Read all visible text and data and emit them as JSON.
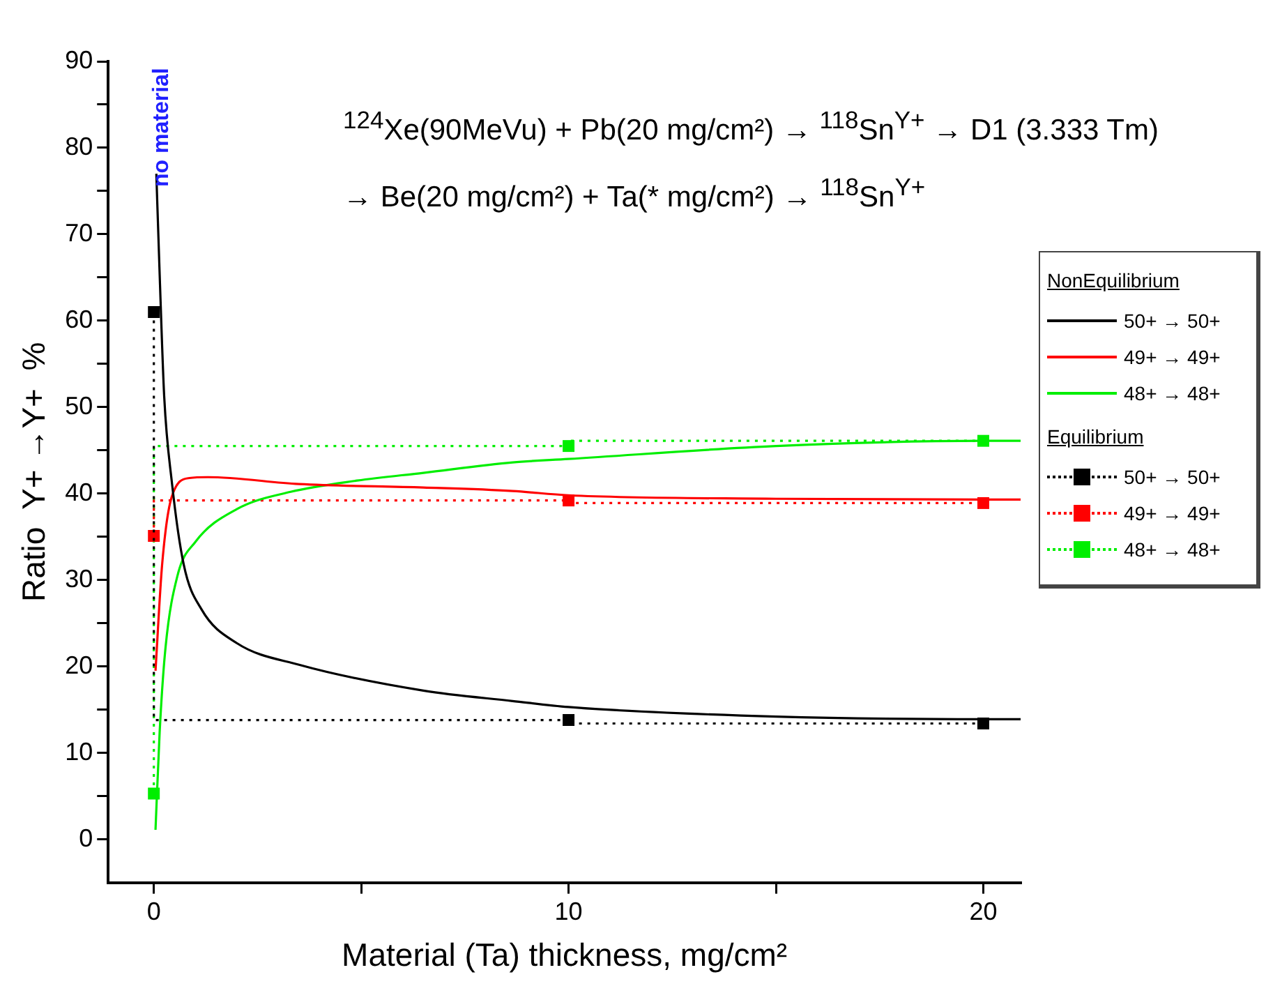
{
  "chart_data": {
    "type": "line",
    "title": "$^{124}$Xe(90MeVu) + Pb(20 mg/cm²)  → $^{118}$Sn$^{Y+}$ → D1 (3.333 Tm)\n→ Be(20 mg/cm²)  + Ta(* mg/cm²) → $^{118}$Sn$^{Y+}$",
    "xlabel": "Material (Ta) thickness, mg/cm²",
    "ylabel": "Ratio  Y+ →Y+  %",
    "annotations": [
      "no material",
      "NonEquilibrium",
      "Equilibrium"
    ],
    "xlim": [
      -1.1,
      20.9
    ],
    "xticks": [
      0,
      {
        "value": 5,
        "label": null
      },
      10,
      {
        "value": 15,
        "label": null
      },
      20
    ],
    "ylim": [
      -5,
      90
    ],
    "yticks": [
      0,
      {
        "value": 5,
        "label": null
      },
      10,
      {
        "value": 15,
        "label": null
      },
      20,
      {
        "value": 25,
        "label": null
      },
      30,
      {
        "value": 35,
        "label": null
      },
      40,
      {
        "value": 45,
        "label": null
      },
      50,
      {
        "value": 55,
        "label": null
      },
      60,
      {
        "value": 65,
        "label": null
      },
      70,
      {
        "value": 75,
        "label": null
      },
      80,
      {
        "value": 85,
        "label": null
      },
      90
    ],
    "legend": "right",
    "series": [
      {
        "name": "50+ → 50+",
        "color": "#000000",
        "marker": "none",
        "line_style": "solid",
        "x": [
          0.06,
          0.14,
          0.25,
          0.43,
          0.72,
          1.15,
          2.0,
          3.5,
          6.5,
          8.65,
          10,
          15,
          20,
          20.9
        ],
        "values": [
          77.0,
          65.4,
          51.2,
          41.5,
          31.8,
          26.6,
          22.7,
          20.2,
          17.2,
          16.0,
          15.3,
          14.2,
          13.9,
          13.9
        ]
      },
      {
        "name": "49+ → 49+",
        "color": "#ff0000",
        "marker": "none",
        "line_style": "solid",
        "x": [
          0.04,
          0.2,
          0.43,
          0.86,
          1.3,
          3.5,
          6.5,
          8.65,
          10,
          15,
          20,
          20.9
        ],
        "values": [
          19.5,
          31.8,
          39.6,
          41.8,
          41.9,
          41.1,
          40.7,
          40.3,
          39.8,
          39.4,
          39.3,
          39.3
        ]
      },
      {
        "name": "48+ → 48+",
        "color": "#00ee00",
        "marker": "none",
        "line_style": "solid",
        "x": [
          0.04,
          0.14,
          0.28,
          0.57,
          1.0,
          2.0,
          3.3,
          4.9,
          6.5,
          8.65,
          10,
          15,
          20,
          20.9
        ],
        "values": [
          1.1,
          12.4,
          22.1,
          30.5,
          34.4,
          38.2,
          40.2,
          41.5,
          42.4,
          43.6,
          44.0,
          45.5,
          46.1,
          46.1
        ]
      },
      {
        "name": "50+ → 50+",
        "color": "#000000",
        "type": "step",
        "marker": "square",
        "line_style": "dotted",
        "x": [
          0,
          10,
          20
        ],
        "values": [
          61.0,
          13.8,
          13.4
        ]
      },
      {
        "name": "49+ → 49+",
        "color": "#ff0000",
        "type": "step",
        "marker": "square",
        "line_style": "dotted",
        "x": [
          0,
          10,
          20
        ],
        "values": [
          35.1,
          39.2,
          38.9
        ]
      },
      {
        "name": "48+ → 48+",
        "color": "#00ee00",
        "type": "step",
        "marker": "square",
        "line_style": "dotted",
        "x": [
          0,
          10,
          20
        ],
        "values": [
          5.3,
          45.5,
          46.1
        ]
      }
    ]
  }
}
